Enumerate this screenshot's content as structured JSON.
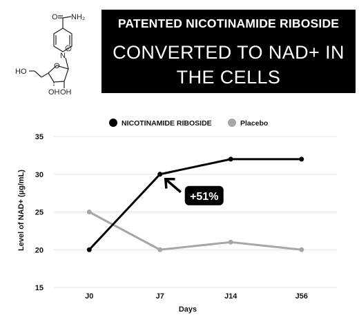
{
  "banner": {
    "line1": "PATENTED NICOTINAMIDE RIBOSIDE",
    "line2": "CONVERTED TO NAD+ IN THE CELLS"
  },
  "molecule": {
    "amide_label": "NH₂",
    "oxygen_label": "O",
    "nitrogen_label": "N",
    "plus_label": "+",
    "hydroxyl_left": "HO",
    "hydroxyl_bottom_left": "OH",
    "hydroxyl_bottom_right": "OH"
  },
  "chart_data": {
    "type": "line",
    "categories": [
      "J0",
      "J7",
      "J14",
      "J56"
    ],
    "series": [
      {
        "name": "NICOTINAMIDE RIBOSIDE",
        "values": [
          20,
          30,
          32,
          32
        ],
        "color": "#000000"
      },
      {
        "name": "Placebo",
        "values": [
          25,
          20,
          21,
          20
        ],
        "color": "#a3a8ab"
      }
    ],
    "xlabel": "Days",
    "ylabel": "Level of NAD+ (µg/mL)",
    "ylim": [
      15,
      35
    ],
    "yticks": [
      15,
      20,
      25,
      30,
      35
    ],
    "grid": true,
    "legend": "top",
    "annotation": {
      "text": "+51%",
      "category": "J7",
      "series": "NICOTINAMIDE RIBOSIDE"
    }
  }
}
